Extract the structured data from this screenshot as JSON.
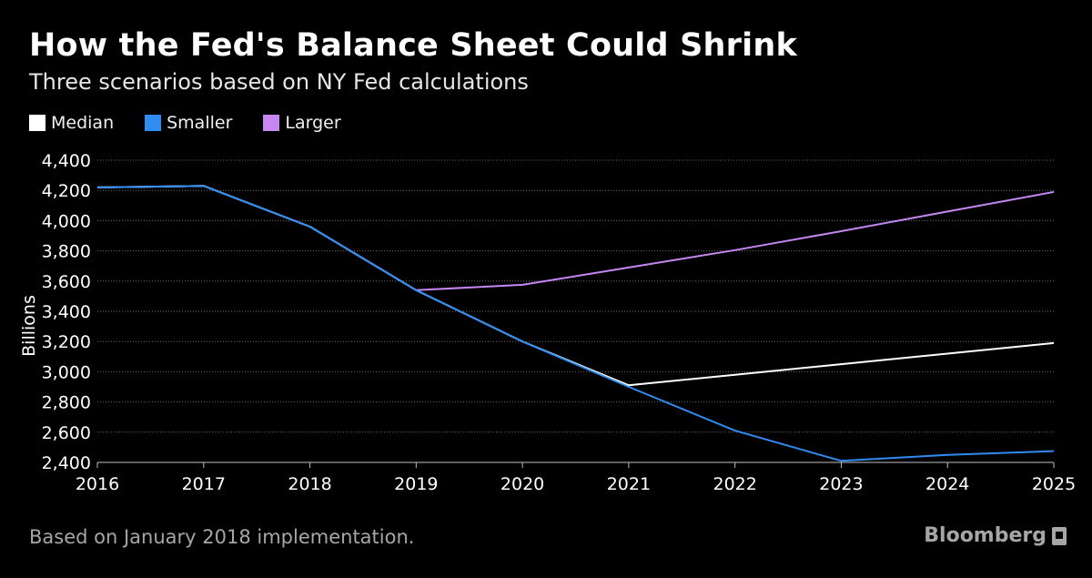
{
  "header": {
    "title": "How the Fed's Balance Sheet Could Shrink",
    "subtitle": "Three scenarios based on NY Fed calculations"
  },
  "footer": {
    "note": "Based on January 2018 implementation.",
    "brand": "Bloomberg",
    "brand_icon": "bloomberg-logo-icon"
  },
  "chart_data": {
    "type": "line",
    "title": "How the Fed's Balance Sheet Could Shrink",
    "subtitle": "Three scenarios based on NY Fed calculations",
    "xlabel": "",
    "ylabel": "Billions",
    "xlim": [
      2016,
      2025
    ],
    "ylim": [
      2400,
      4400
    ],
    "x_ticks": [
      "2016",
      "2017",
      "2018",
      "2019",
      "2020",
      "2021",
      "2022",
      "2023",
      "2024",
      "2025"
    ],
    "y_ticks": [
      "2,400",
      "2,600",
      "2,800",
      "3,000",
      "3,200",
      "3,400",
      "3,600",
      "3,800",
      "4,000",
      "4,200",
      "4,400"
    ],
    "grid": true,
    "legend_placement": "top-left",
    "series": [
      {
        "name": "Median",
        "color": "#ffffff",
        "points": [
          [
            2016,
            4220
          ],
          [
            2016.5,
            4225
          ],
          [
            2017,
            4230
          ],
          [
            2018,
            3960
          ],
          [
            2019,
            3540
          ],
          [
            2020,
            3200
          ],
          [
            2021,
            2910
          ],
          [
            2022,
            2980
          ],
          [
            2023,
            3050
          ],
          [
            2024,
            3120
          ],
          [
            2025,
            3190
          ]
        ]
      },
      {
        "name": "Smaller",
        "color": "#2f8cf0",
        "points": [
          [
            2016,
            4220
          ],
          [
            2016.5,
            4225
          ],
          [
            2017,
            4230
          ],
          [
            2018,
            3960
          ],
          [
            2019,
            3540
          ],
          [
            2020,
            3200
          ],
          [
            2021,
            2900
          ],
          [
            2022,
            2610
          ],
          [
            2023,
            2410
          ],
          [
            2024,
            2450
          ],
          [
            2025,
            2475
          ]
        ]
      },
      {
        "name": "Larger",
        "color": "#c587f2",
        "points": [
          [
            2016,
            4220
          ],
          [
            2016.5,
            4225
          ],
          [
            2017,
            4230
          ],
          [
            2018,
            3960
          ],
          [
            2019,
            3540
          ],
          [
            2020,
            3575
          ],
          [
            2021,
            3690
          ],
          [
            2022,
            3805
          ],
          [
            2023,
            3930
          ],
          [
            2024,
            4060
          ],
          [
            2025,
            4190
          ]
        ]
      }
    ]
  }
}
